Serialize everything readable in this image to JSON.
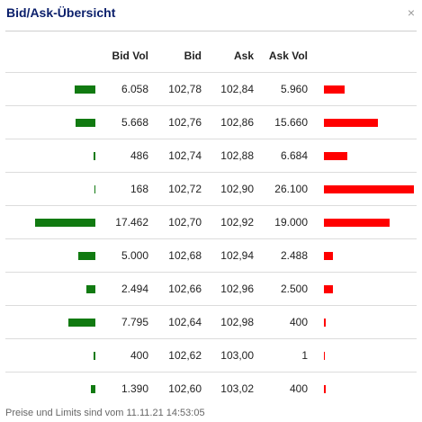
{
  "window": {
    "title": "Bid/Ask-Übersicht",
    "close_label": "×"
  },
  "columns": {
    "bid_vol": "Bid Vol",
    "bid": "Bid",
    "ask": "Ask",
    "ask_vol": "Ask Vol"
  },
  "rows": [
    {
      "bid_vol": "6.058",
      "bid": "102,78",
      "ask": "102,84",
      "ask_vol": "5.960"
    },
    {
      "bid_vol": "5.668",
      "bid": "102,76",
      "ask": "102,86",
      "ask_vol": "15.660"
    },
    {
      "bid_vol": "486",
      "bid": "102,74",
      "ask": "102,88",
      "ask_vol": "6.684"
    },
    {
      "bid_vol": "168",
      "bid": "102,72",
      "ask": "102,90",
      "ask_vol": "26.100"
    },
    {
      "bid_vol": "17.462",
      "bid": "102,70",
      "ask": "102,92",
      "ask_vol": "19.000"
    },
    {
      "bid_vol": "5.000",
      "bid": "102,68",
      "ask": "102,94",
      "ask_vol": "2.488"
    },
    {
      "bid_vol": "2.494",
      "bid": "102,66",
      "ask": "102,96",
      "ask_vol": "2.500"
    },
    {
      "bid_vol": "7.795",
      "bid": "102,64",
      "ask": "102,98",
      "ask_vol": "400"
    },
    {
      "bid_vol": "400",
      "bid": "102,62",
      "ask": "103,00",
      "ask_vol": "1"
    },
    {
      "bid_vol": "1.390",
      "bid": "102,60",
      "ask": "103,02",
      "ask_vol": "400"
    }
  ],
  "bars": {
    "max_volume": 26100,
    "bid_values": [
      6058,
      5668,
      486,
      168,
      17462,
      5000,
      2494,
      7795,
      400,
      1390
    ],
    "ask_values": [
      5960,
      15660,
      6684,
      26100,
      19000,
      2488,
      2500,
      400,
      1,
      400
    ],
    "bid_color": "#117a11",
    "ask_color": "#ff0000"
  },
  "footer": {
    "text": "Preise und Limits sind vom 11.11.21 14:53:05"
  }
}
